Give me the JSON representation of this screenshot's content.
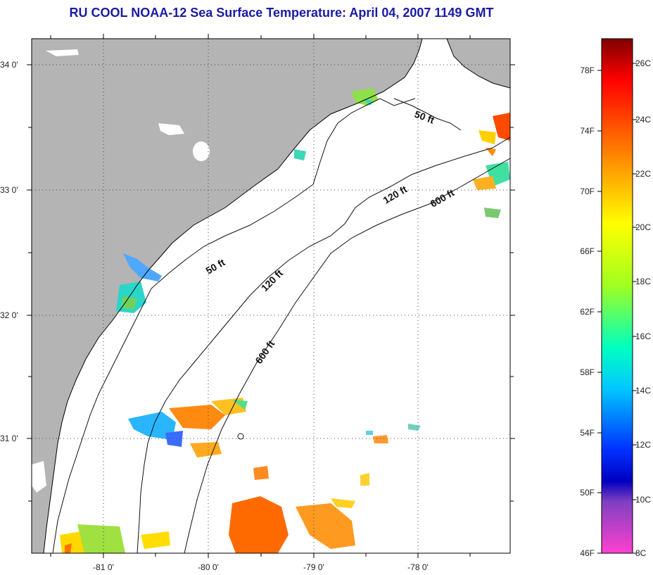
{
  "title": "RU COOL  NOAA-12  Sea Surface Temperature:  April 04, 2007 1149 GMT",
  "map": {
    "lat_labels": [
      "34 0'",
      "33 0'",
      "32 0'",
      "31 0'"
    ],
    "lon_labels": [
      "-81 0'",
      "-80 0'",
      "-79 0'",
      "-78 0'"
    ],
    "contour_labels": [
      "50 ft",
      "120 ft",
      "600 ft",
      "50 ft",
      "120 ft",
      "600 ft"
    ]
  },
  "colorbar": {
    "fahrenheit_labels": [
      "78F",
      "74F",
      "70F",
      "66F",
      "62F",
      "58F",
      "54F",
      "50F",
      "46F"
    ],
    "celsius_labels": [
      "26C",
      "24C",
      "22C",
      "20C",
      "18C",
      "16C",
      "14C",
      "12C",
      "10C",
      "8C"
    ],
    "colors": [
      "#8b0000",
      "#ff0000",
      "#ff7f00",
      "#ffff00",
      "#7fff00",
      "#00ffff",
      "#0000ff",
      "#8000c0",
      "#ff44cc"
    ]
  }
}
